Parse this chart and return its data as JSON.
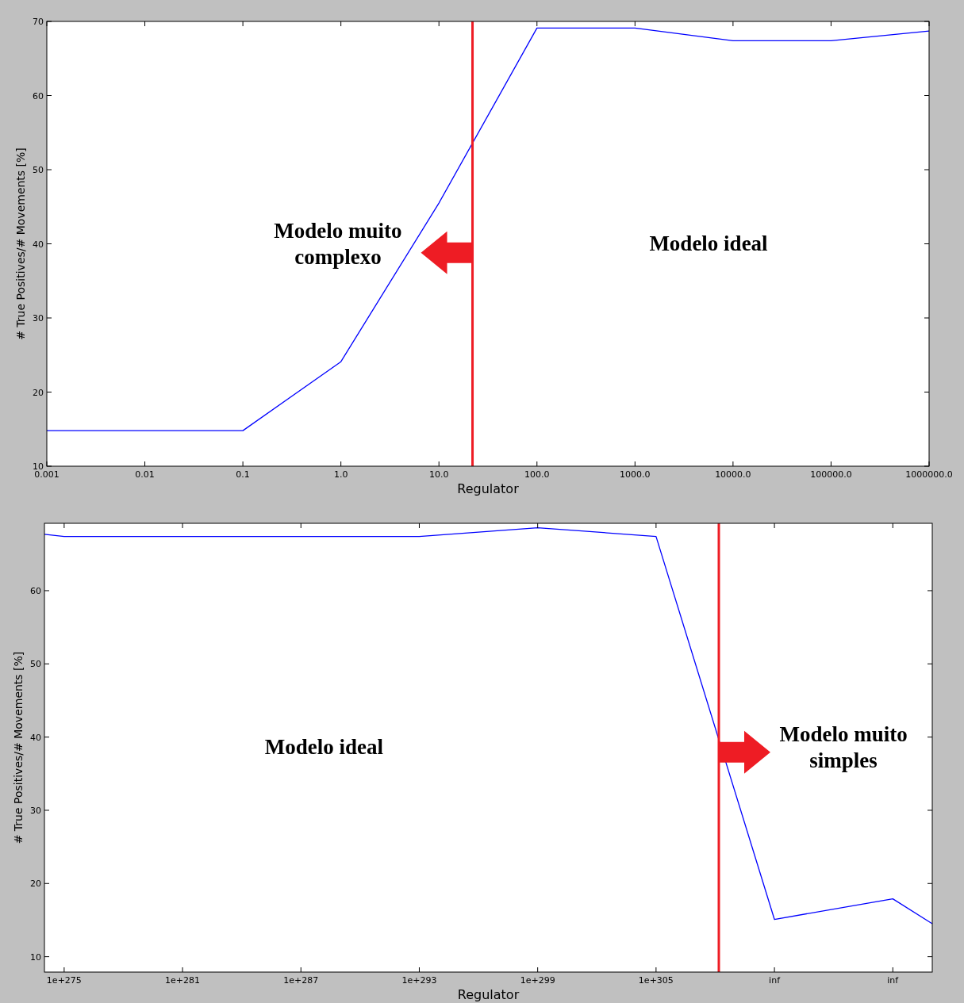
{
  "chart_data": [
    {
      "type": "line",
      "xlabel": "Regulator",
      "ylabel": "# True Positives/# Movements [%]",
      "log": "x",
      "xlim": [
        0.001,
        1000000
      ],
      "xticks": [
        0.001,
        0.01,
        0.1,
        {
          "value": 1,
          "label": "1.0"
        },
        {
          "value": 10,
          "label": "10.0"
        },
        {
          "value": 100,
          "label": "100.0"
        },
        {
          "value": 1000,
          "label": "1000.0"
        },
        {
          "value": 10000,
          "label": "10000.0"
        },
        {
          "value": 100000,
          "label": "100000.0"
        },
        {
          "value": 1000000,
          "label": "1000000.0"
        }
      ],
      "ylim": [
        10,
        70
      ],
      "yticks": [
        10,
        20,
        30,
        40,
        50,
        60,
        70
      ],
      "series": [
        {
          "color": "#0000ff",
          "x": [
            0.001,
            0.01,
            0.1,
            1,
            10,
            100,
            1000,
            10000,
            100000,
            1000000
          ],
          "values": [
            14.8,
            14.8,
            14.8,
            24.1,
            45.5,
            69.1,
            69.1,
            67.4,
            67.4,
            68.7
          ]
        }
      ],
      "ref_lines": [
        {
          "axis": "x",
          "value": 22,
          "color": "#ee1c24"
        }
      ],
      "annotations": [
        "Modelo muito\ncomplexo",
        "Modelo ideal"
      ]
    },
    {
      "type": "line",
      "xlabel": "Regulator",
      "ylabel": "# True Positives/# Movements [%]",
      "categories": [
        null,
        "1e+275",
        null,
        null,
        null,
        null,
        null,
        "1e+281",
        null,
        null,
        null,
        null,
        null,
        "1e+287",
        null,
        null,
        null,
        null,
        null,
        "1e+293",
        null,
        null,
        null,
        null,
        null,
        "1e+299",
        null,
        null,
        null,
        null,
        null,
        "1e+305",
        null,
        null,
        null,
        null,
        null,
        "inf",
        null,
        null,
        null,
        null,
        null,
        "inf",
        null,
        null
      ],
      "ylim": [
        7.9,
        69.2
      ],
      "yticks": [
        10,
        20,
        30,
        40,
        50,
        60
      ],
      "series": [
        {
          "color": "#0000ff",
          "values": [
            67.7,
            67.4,
            null,
            null,
            null,
            null,
            null,
            null,
            null,
            null,
            null,
            null,
            null,
            null,
            null,
            null,
            null,
            null,
            null,
            67.4,
            null,
            null,
            null,
            null,
            null,
            68.6,
            null,
            null,
            null,
            null,
            null,
            67.4,
            null,
            null,
            null,
            null,
            null,
            15.1,
            null,
            null,
            null,
            null,
            null,
            17.9,
            null,
            14.5
          ]
        }
      ],
      "annotations": [
        "Modelo ideal",
        "Modelo muito\nsimples"
      ]
    }
  ]
}
